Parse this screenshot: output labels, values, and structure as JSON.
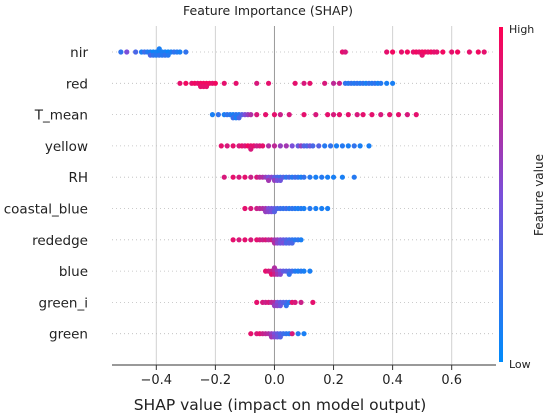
{
  "chart_data": {
    "type": "scatter",
    "subtype": "shap-beeswarm",
    "title": "Feature Importance (SHAP)",
    "xlabel": "SHAP value (impact on model output)",
    "xlim": [
      -0.55,
      0.75
    ],
    "xticks": [
      -0.4,
      -0.2,
      0.0,
      0.2,
      0.4,
      0.6
    ],
    "xtick_labels": [
      "−0.4",
      "−0.2",
      "0.0",
      "0.2",
      "0.4",
      "0.6"
    ],
    "grid": "vertical",
    "colorbar": {
      "label": "Feature value",
      "high_label": "High",
      "low_label": "Low",
      "high_color": "#ff0052",
      "low_color": "#008bfb"
    },
    "features": [
      {
        "name": "nir",
        "points": [
          [
            -0.52,
            0.2
          ],
          [
            -0.5,
            0.5
          ],
          [
            -0.47,
            0.3
          ],
          [
            -0.45,
            0.1
          ],
          [
            -0.44,
            0.25
          ],
          [
            -0.43,
            0.15
          ],
          [
            -0.42,
            0.1
          ],
          [
            -0.42,
            0.3
          ],
          [
            -0.41,
            0.05
          ],
          [
            -0.41,
            0.2
          ],
          [
            -0.4,
            0.1
          ],
          [
            -0.4,
            0.15
          ],
          [
            -0.39,
            0.05
          ],
          [
            -0.39,
            0.2
          ],
          [
            -0.39,
            0.1
          ],
          [
            -0.38,
            0.1
          ],
          [
            -0.38,
            0.15
          ],
          [
            -0.37,
            0.1
          ],
          [
            -0.37,
            0.2
          ],
          [
            -0.36,
            0.05
          ],
          [
            -0.36,
            0.15
          ],
          [
            -0.35,
            0.1
          ],
          [
            -0.34,
            0.2
          ],
          [
            -0.33,
            0.15
          ],
          [
            -0.32,
            0.1
          ],
          [
            -0.3,
            0.2
          ],
          [
            0.23,
            0.9
          ],
          [
            0.24,
            0.85
          ],
          [
            0.38,
            0.9
          ],
          [
            0.4,
            0.95
          ],
          [
            0.43,
            0.9
          ],
          [
            0.45,
            0.95
          ],
          [
            0.47,
            0.9
          ],
          [
            0.48,
            0.95
          ],
          [
            0.49,
            0.9
          ],
          [
            0.5,
            0.95
          ],
          [
            0.5,
            0.9
          ],
          [
            0.51,
            0.95
          ],
          [
            0.52,
            0.9
          ],
          [
            0.53,
            0.95
          ],
          [
            0.54,
            0.9
          ],
          [
            0.55,
            0.9
          ],
          [
            0.57,
            0.95
          ],
          [
            0.6,
            0.9
          ],
          [
            0.62,
            0.95
          ],
          [
            0.66,
            0.9
          ],
          [
            0.69,
            0.95
          ],
          [
            0.71,
            0.9
          ]
        ]
      },
      {
        "name": "red",
        "points": [
          [
            -0.32,
            0.9
          ],
          [
            -0.3,
            0.95
          ],
          [
            -0.28,
            0.9
          ],
          [
            -0.27,
            0.95
          ],
          [
            -0.26,
            0.9
          ],
          [
            -0.25,
            0.95
          ],
          [
            -0.25,
            0.9
          ],
          [
            -0.24,
            0.95
          ],
          [
            -0.24,
            0.9
          ],
          [
            -0.23,
            0.95
          ],
          [
            -0.23,
            0.9
          ],
          [
            -0.22,
            0.95
          ],
          [
            -0.21,
            0.9
          ],
          [
            -0.2,
            0.95
          ],
          [
            -0.17,
            0.9
          ],
          [
            -0.13,
            0.9
          ],
          [
            -0.06,
            0.85
          ],
          [
            -0.02,
            0.9
          ],
          [
            0.07,
            0.9
          ],
          [
            0.1,
            0.85
          ],
          [
            0.12,
            0.9
          ],
          [
            0.17,
            0.85
          ],
          [
            0.2,
            0.75
          ],
          [
            0.22,
            0.8
          ],
          [
            0.24,
            0.2
          ],
          [
            0.25,
            0.15
          ],
          [
            0.26,
            0.2
          ],
          [
            0.27,
            0.15
          ],
          [
            0.28,
            0.2
          ],
          [
            0.29,
            0.15
          ],
          [
            0.3,
            0.2
          ],
          [
            0.31,
            0.1
          ],
          [
            0.32,
            0.2
          ],
          [
            0.33,
            0.15
          ],
          [
            0.34,
            0.2
          ],
          [
            0.35,
            0.1
          ],
          [
            0.36,
            0.15
          ],
          [
            0.38,
            0.1
          ],
          [
            0.4,
            0.1
          ]
        ]
      },
      {
        "name": "T_mean",
        "points": [
          [
            -0.21,
            0.1
          ],
          [
            -0.19,
            0.2
          ],
          [
            -0.17,
            0.1
          ],
          [
            -0.16,
            0.2
          ],
          [
            -0.15,
            0.15
          ],
          [
            -0.14,
            0.1
          ],
          [
            -0.14,
            0.25
          ],
          [
            -0.13,
            0.2
          ],
          [
            -0.13,
            0.1
          ],
          [
            -0.12,
            0.15
          ],
          [
            -0.12,
            0.3
          ],
          [
            -0.11,
            0.35
          ],
          [
            -0.1,
            0.5
          ],
          [
            -0.09,
            0.6
          ],
          [
            -0.08,
            0.7
          ],
          [
            -0.06,
            0.85
          ],
          [
            -0.03,
            0.9
          ],
          [
            0.0,
            0.9
          ],
          [
            0.02,
            0.8
          ],
          [
            0.05,
            0.85
          ],
          [
            0.1,
            0.9
          ],
          [
            0.14,
            0.85
          ],
          [
            0.18,
            0.9
          ],
          [
            0.2,
            0.85
          ],
          [
            0.22,
            0.9
          ],
          [
            0.25,
            0.9
          ],
          [
            0.28,
            0.85
          ],
          [
            0.3,
            0.9
          ],
          [
            0.33,
            0.9
          ],
          [
            0.36,
            0.85
          ],
          [
            0.39,
            0.9
          ],
          [
            0.42,
            0.9
          ],
          [
            0.45,
            0.85
          ],
          [
            0.48,
            0.9
          ]
        ]
      },
      {
        "name": "yellow",
        "points": [
          [
            -0.18,
            0.9
          ],
          [
            -0.16,
            0.85
          ],
          [
            -0.14,
            0.9
          ],
          [
            -0.12,
            0.85
          ],
          [
            -0.11,
            0.9
          ],
          [
            -0.1,
            0.85
          ],
          [
            -0.09,
            0.95
          ],
          [
            -0.08,
            0.9
          ],
          [
            -0.08,
            0.85
          ],
          [
            -0.07,
            0.9
          ],
          [
            -0.06,
            0.8
          ],
          [
            -0.05,
            0.85
          ],
          [
            -0.04,
            0.9
          ],
          [
            -0.02,
            0.7
          ],
          [
            0.0,
            0.75
          ],
          [
            0.02,
            0.6
          ],
          [
            0.04,
            0.65
          ],
          [
            0.06,
            0.5
          ],
          [
            0.08,
            0.4
          ],
          [
            0.09,
            0.6
          ],
          [
            0.1,
            0.35
          ],
          [
            0.11,
            0.3
          ],
          [
            0.12,
            0.45
          ],
          [
            0.13,
            0.3
          ],
          [
            0.15,
            0.35
          ],
          [
            0.17,
            0.15
          ],
          [
            0.19,
            0.2
          ],
          [
            0.21,
            0.1
          ],
          [
            0.23,
            0.15
          ],
          [
            0.25,
            0.1
          ],
          [
            0.27,
            0.2
          ],
          [
            0.29,
            0.1
          ],
          [
            0.32,
            0.1
          ]
        ]
      },
      {
        "name": "RH",
        "points": [
          [
            -0.17,
            0.85
          ],
          [
            -0.14,
            0.9
          ],
          [
            -0.12,
            0.85
          ],
          [
            -0.1,
            0.9
          ],
          [
            -0.08,
            0.8
          ],
          [
            -0.06,
            0.85
          ],
          [
            -0.05,
            0.75
          ],
          [
            -0.04,
            0.7
          ],
          [
            -0.03,
            0.6
          ],
          [
            -0.02,
            0.5
          ],
          [
            -0.02,
            0.65
          ],
          [
            -0.01,
            0.55
          ],
          [
            0.0,
            0.4
          ],
          [
            0.0,
            0.6
          ],
          [
            0.01,
            0.3
          ],
          [
            0.01,
            0.5
          ],
          [
            0.02,
            0.25
          ],
          [
            0.02,
            0.45
          ],
          [
            0.03,
            0.35
          ],
          [
            0.04,
            0.2
          ],
          [
            0.05,
            0.3
          ],
          [
            0.06,
            0.15
          ],
          [
            0.07,
            0.25
          ],
          [
            0.08,
            0.2
          ],
          [
            0.09,
            0.1
          ],
          [
            0.1,
            0.2
          ],
          [
            0.12,
            0.15
          ],
          [
            0.14,
            0.1
          ],
          [
            0.16,
            0.15
          ],
          [
            0.18,
            0.1
          ],
          [
            0.2,
            0.1
          ],
          [
            0.23,
            0.1
          ],
          [
            0.27,
            0.15
          ]
        ]
      },
      {
        "name": "coastal_blue",
        "points": [
          [
            -0.1,
            0.9
          ],
          [
            -0.08,
            0.85
          ],
          [
            -0.06,
            0.8
          ],
          [
            -0.05,
            0.75
          ],
          [
            -0.04,
            0.7
          ],
          [
            -0.03,
            0.65
          ],
          [
            -0.03,
            0.6
          ],
          [
            -0.02,
            0.5
          ],
          [
            -0.02,
            0.55
          ],
          [
            -0.01,
            0.45
          ],
          [
            -0.01,
            0.5
          ],
          [
            0.0,
            0.4
          ],
          [
            0.0,
            0.35
          ],
          [
            0.01,
            0.3
          ],
          [
            0.02,
            0.25
          ],
          [
            0.03,
            0.2
          ],
          [
            0.04,
            0.25
          ],
          [
            0.05,
            0.15
          ],
          [
            0.06,
            0.2
          ],
          [
            0.07,
            0.15
          ],
          [
            0.08,
            0.1
          ],
          [
            0.09,
            0.15
          ],
          [
            0.1,
            0.1
          ],
          [
            0.12,
            0.15
          ],
          [
            0.14,
            0.1
          ],
          [
            0.16,
            0.1
          ],
          [
            0.18,
            0.1
          ]
        ]
      },
      {
        "name": "rededge",
        "points": [
          [
            -0.14,
            0.9
          ],
          [
            -0.12,
            0.85
          ],
          [
            -0.1,
            0.9
          ],
          [
            -0.08,
            0.85
          ],
          [
            -0.06,
            0.9
          ],
          [
            -0.05,
            0.85
          ],
          [
            -0.04,
            0.8
          ],
          [
            -0.03,
            0.85
          ],
          [
            -0.02,
            0.75
          ],
          [
            -0.01,
            0.8
          ],
          [
            0.0,
            0.65
          ],
          [
            0.0,
            0.7
          ],
          [
            0.01,
            0.6
          ],
          [
            0.01,
            0.55
          ],
          [
            0.02,
            0.5
          ],
          [
            0.02,
            0.45
          ],
          [
            0.03,
            0.4
          ],
          [
            0.03,
            0.5
          ],
          [
            0.04,
            0.35
          ],
          [
            0.04,
            0.3
          ],
          [
            0.05,
            0.25
          ],
          [
            0.05,
            0.35
          ],
          [
            0.06,
            0.2
          ],
          [
            0.06,
            0.3
          ],
          [
            0.07,
            0.15
          ],
          [
            0.08,
            0.2
          ],
          [
            0.09,
            0.1
          ]
        ]
      },
      {
        "name": "blue",
        "points": [
          [
            -0.03,
            0.9
          ],
          [
            -0.02,
            0.85
          ],
          [
            -0.01,
            0.8
          ],
          [
            -0.01,
            0.9
          ],
          [
            0.0,
            0.75
          ],
          [
            0.0,
            0.8
          ],
          [
            0.0,
            0.7
          ],
          [
            0.01,
            0.6
          ],
          [
            0.01,
            0.65
          ],
          [
            0.02,
            0.5
          ],
          [
            0.02,
            0.55
          ],
          [
            0.03,
            0.4
          ],
          [
            0.04,
            0.35
          ],
          [
            0.05,
            0.3
          ],
          [
            0.05,
            0.2
          ],
          [
            0.06,
            0.25
          ],
          [
            0.07,
            0.15
          ],
          [
            0.08,
            0.1
          ],
          [
            0.09,
            0.15
          ],
          [
            0.1,
            0.1
          ],
          [
            0.12,
            0.1
          ]
        ]
      },
      {
        "name": "green_i",
        "points": [
          [
            -0.06,
            0.9
          ],
          [
            -0.04,
            0.85
          ],
          [
            -0.03,
            0.8
          ],
          [
            -0.02,
            0.85
          ],
          [
            -0.01,
            0.75
          ],
          [
            0.0,
            0.7
          ],
          [
            0.0,
            0.6
          ],
          [
            0.01,
            0.5
          ],
          [
            0.01,
            0.55
          ],
          [
            0.02,
            0.4
          ],
          [
            0.02,
            0.45
          ],
          [
            0.03,
            0.35
          ],
          [
            0.04,
            0.3
          ],
          [
            0.04,
            0.2
          ],
          [
            0.05,
            0.15
          ],
          [
            0.06,
            0.9
          ],
          [
            0.07,
            0.85
          ],
          [
            0.09,
            0.8
          ],
          [
            0.13,
            0.9
          ]
        ]
      },
      {
        "name": "green",
        "points": [
          [
            -0.08,
            0.9
          ],
          [
            -0.06,
            0.85
          ],
          [
            -0.05,
            0.9
          ],
          [
            -0.04,
            0.8
          ],
          [
            -0.03,
            0.75
          ],
          [
            -0.02,
            0.7
          ],
          [
            -0.01,
            0.6
          ],
          [
            -0.01,
            0.65
          ],
          [
            0.0,
            0.5
          ],
          [
            0.0,
            0.55
          ],
          [
            0.01,
            0.4
          ],
          [
            0.01,
            0.45
          ],
          [
            0.02,
            0.3
          ],
          [
            0.02,
            0.35
          ],
          [
            0.03,
            0.25
          ],
          [
            0.04,
            0.2
          ],
          [
            0.05,
            0.15
          ],
          [
            0.06,
            0.85
          ],
          [
            0.08,
            0.15
          ],
          [
            0.1,
            0.1
          ]
        ]
      }
    ]
  }
}
